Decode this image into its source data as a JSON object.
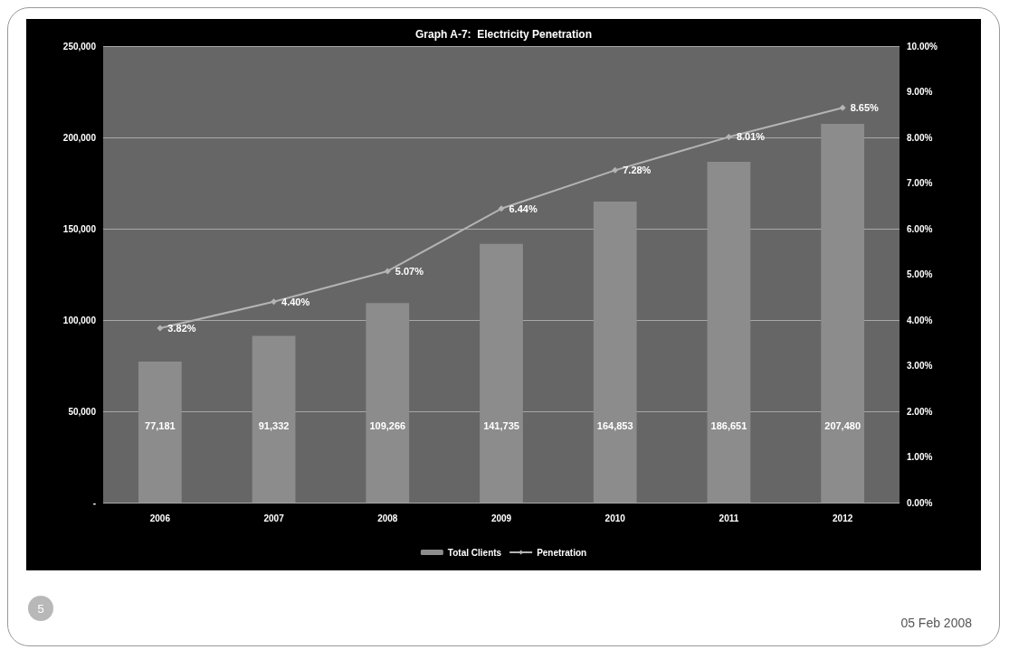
{
  "chart_data": {
    "type": "bar",
    "title": "Graph A-7:  Electricity Penetration",
    "categories": [
      "2006",
      "2007",
      "2008",
      "2009",
      "2010",
      "2011",
      "2012"
    ],
    "series": [
      {
        "name": "Total Clients",
        "color": "#8c8c8c",
        "values": [
          77181,
          91332,
          109266,
          141735,
          164853,
          186651,
          207480
        ],
        "value_labels": [
          "77,181",
          "91,332",
          "109,266",
          "141,735",
          "164,853",
          "186,651",
          "207,480"
        ]
      },
      {
        "name": "Penetration",
        "type": "line",
        "axis": "y2",
        "color": "#b4b4b4",
        "values": [
          3.82,
          4.4,
          5.07,
          6.44,
          7.28,
          8.01,
          8.65
        ],
        "value_labels": [
          "3.82%",
          "4.40%",
          "5.07%",
          "6.44%",
          "7.28%",
          "8.01%",
          "8.65%"
        ]
      }
    ],
    "ylim": [
      0,
      250000
    ],
    "yticks": [
      {
        "value": 0,
        "label": "-"
      },
      {
        "value": 50000,
        "label": "50,000"
      },
      {
        "value": 100000,
        "label": "100,000"
      },
      {
        "value": 150000,
        "label": "150,000"
      },
      {
        "value": 200000,
        "label": "200,000"
      },
      {
        "value": 250000,
        "label": "250,000"
      }
    ],
    "y2lim": [
      0,
      10
    ],
    "y2ticks": [
      {
        "value": 0,
        "label": "0.00%"
      },
      {
        "value": 1,
        "label": "1.00%"
      },
      {
        "value": 2,
        "label": "2.00%"
      },
      {
        "value": 3,
        "label": "3.00%"
      },
      {
        "value": 4,
        "label": "4.00%"
      },
      {
        "value": 5,
        "label": "5.00%"
      },
      {
        "value": 6,
        "label": "6.00%"
      },
      {
        "value": 7,
        "label": "7.00%"
      },
      {
        "value": 8,
        "label": "8.00%"
      },
      {
        "value": 9,
        "label": "9.00%"
      },
      {
        "value": 10,
        "label": "10.00%"
      }
    ],
    "grid": "y",
    "legend": "bottom",
    "marker": "diamond",
    "line_style": "solid",
    "annotations": [
      "5",
      "05 Feb 2008"
    ]
  }
}
